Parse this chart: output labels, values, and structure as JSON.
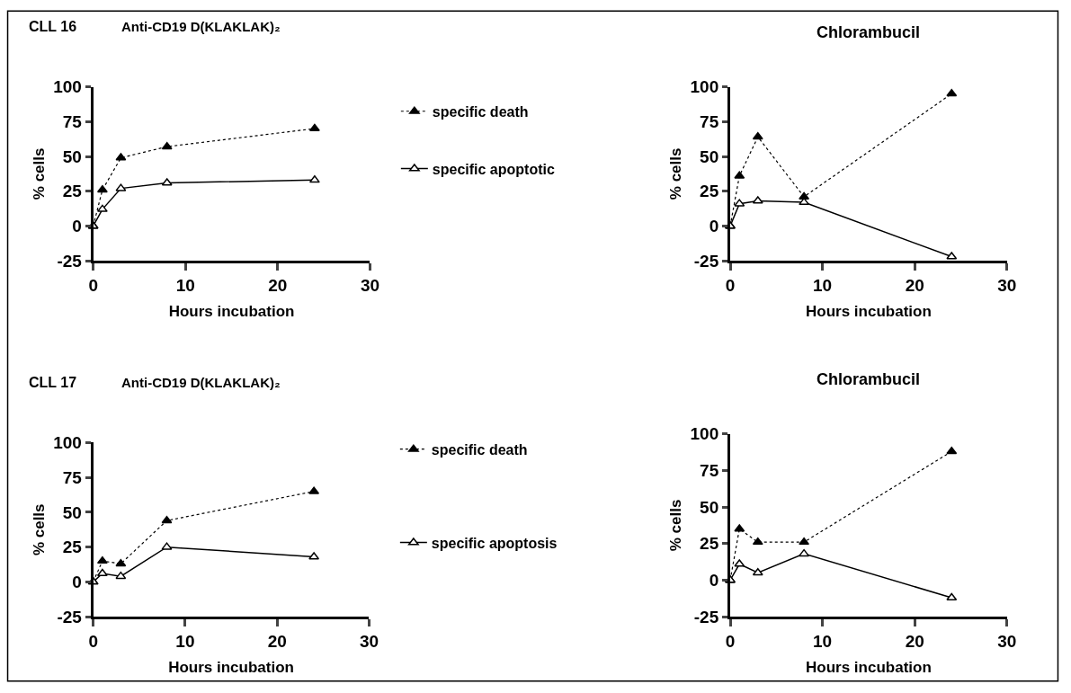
{
  "chart_data": [
    {
      "type": "line",
      "title": "CLL 16",
      "subtitle": "Anti-CD19 D(KLAKLAK)₂",
      "xlabel": "Hours incubation",
      "ylabel": "% cells",
      "x": [
        0,
        1,
        3,
        8,
        24
      ],
      "series": [
        {
          "name": "specific death",
          "color": "#000000",
          "line_style": "dotted",
          "values": [
            0,
            26,
            49,
            57,
            70
          ]
        },
        {
          "name": "specific apoptotic",
          "color": "#000000",
          "line_style": "solid",
          "values": [
            0,
            12,
            27,
            31,
            33
          ]
        }
      ],
      "xlim": [
        0,
        30
      ],
      "xticks": [
        0,
        10,
        20,
        30
      ],
      "ylim": [
        -25,
        100
      ],
      "yticks": [
        -25,
        0,
        25,
        50,
        75,
        100
      ],
      "legend": "right",
      "marker": "triangle"
    },
    {
      "type": "line",
      "title": "Chlorambucil",
      "xlabel": "Hours incubation",
      "ylabel": "% cells",
      "x": [
        0,
        1,
        3,
        8,
        24
      ],
      "series": [
        {
          "color": "#000000",
          "line_style": "dotted",
          "values": [
            0,
            36,
            64,
            21,
            95
          ]
        },
        {
          "color": "#000000",
          "line_style": "solid",
          "values": [
            0,
            16,
            18,
            17,
            -22
          ]
        }
      ],
      "xlim": [
        0,
        30
      ],
      "xticks": [
        0,
        10,
        20,
        30
      ],
      "ylim": [
        -25,
        100
      ],
      "yticks": [
        -25,
        0,
        25,
        50,
        75,
        100
      ],
      "marker": "triangle"
    },
    {
      "type": "line",
      "title": "CLL 17",
      "subtitle": "Anti-CD19 D(KLAKLAK)₂",
      "xlabel": "Hours incubation",
      "ylabel": "% cells",
      "x": [
        0,
        1,
        3,
        8,
        24
      ],
      "series": [
        {
          "name": "specific death",
          "color": "#000000",
          "line_style": "dotted",
          "values": [
            0,
            15,
            13,
            44,
            65
          ]
        },
        {
          "name": "specific apoptosis",
          "color": "#000000",
          "line_style": "solid",
          "values": [
            0,
            6,
            4,
            25,
            18
          ]
        }
      ],
      "xlim": [
        0,
        30
      ],
      "xticks": [
        0,
        10,
        20,
        30
      ],
      "ylim": [
        -25,
        100
      ],
      "yticks": [
        -25,
        0,
        25,
        50,
        75,
        100
      ],
      "legend": "right",
      "marker": "triangle"
    },
    {
      "type": "line",
      "title": "Chlorambucil",
      "xlabel": "Hours incubation",
      "ylabel": "% cells",
      "x": [
        0,
        1,
        3,
        8,
        24
      ],
      "series": [
        {
          "color": "#000000",
          "line_style": "dotted",
          "values": [
            0,
            35,
            26,
            26,
            88
          ]
        },
        {
          "color": "#000000",
          "line_style": "solid",
          "values": [
            0,
            11,
            5,
            18,
            -12
          ]
        }
      ],
      "xlim": [
        0,
        30
      ],
      "xticks": [
        0,
        10,
        20,
        30
      ],
      "ylim": [
        -25,
        100
      ],
      "yticks": [
        -25,
        0,
        25,
        50,
        75,
        100
      ],
      "marker": "triangle"
    }
  ]
}
